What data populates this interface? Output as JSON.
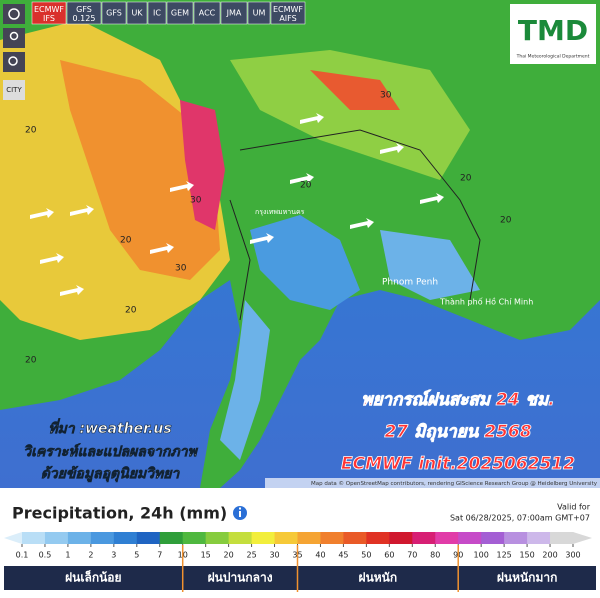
{
  "toolbar": {
    "models": [
      "ECMWF IFS",
      "GFS 0.125",
      "GFS",
      "UK",
      "IC",
      "GEM",
      "ACC",
      "JMA",
      "UM",
      "ECMWF AIFS"
    ]
  },
  "side_buttons": {
    "city": "CITY"
  },
  "logo": {
    "text": "TMD",
    "subtitle": "Thai Meteorological Department"
  },
  "map": {
    "places": [
      "Phnom Penh",
      "Thành phố Hồ Chí Minh",
      "กรุงเทพมหานคร"
    ],
    "amounts": [
      "20",
      "30",
      "20",
      "30",
      "20",
      "20",
      "30",
      "20",
      "20",
      "20"
    ]
  },
  "overlay": {
    "source": "ที่มา :weather.us",
    "analysis": "วิเคราะห์และแปลผลจากภาพ",
    "data_from": "ด้วยข้อมูลอุตุนิยมวิทยา",
    "forecast_title": "พยากรณ์ฝนสะสม 24 ชม.",
    "date": "27 มิถุนายน 2568",
    "model_init": "ECMWF init.2025062512"
  },
  "attribution": "Map data © OpenStreetMap contributors, rendering GIScience Research Group @ Heidelberg University",
  "legend": {
    "title": "Precipitation, 24h (mm)",
    "valid_label": "Valid for",
    "valid_time": "Sat 06/28/2025, 07:00am GMT+07",
    "ticks": [
      0.1,
      0.5,
      1,
      2,
      3,
      5,
      7,
      10,
      15,
      20,
      25,
      30,
      35,
      40,
      45,
      50,
      60,
      70,
      80,
      90,
      100,
      125,
      150,
      200,
      300
    ],
    "colors": [
      "#dbeefa",
      "#b9def6",
      "#94caf0",
      "#6cb2e8",
      "#4a98df",
      "#2f7fd3",
      "#1f64c2",
      "#2f9e3a",
      "#4fb83f",
      "#86cc3e",
      "#c4de3d",
      "#f2ee3c",
      "#f6c938",
      "#f5a433",
      "#f07f2d",
      "#e95a27",
      "#e03224",
      "#d0182e",
      "#d71f74",
      "#e13ca8",
      "#c64bc8",
      "#a45fd4",
      "#b890e0",
      "#cdb8ea",
      "#d8d8d8"
    ],
    "categories": [
      "ฝนเล็กน้อย",
      "ฝนปานกลาง",
      "ฝนหนัก",
      "ฝนหนักมาก"
    ]
  }
}
